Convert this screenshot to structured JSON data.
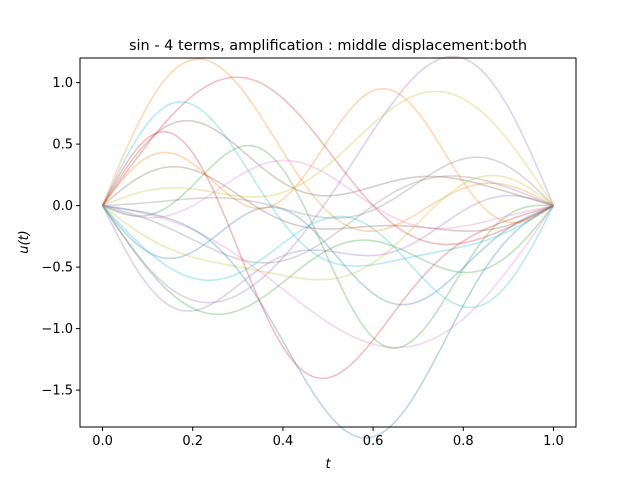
{
  "chart_data": {
    "type": "line",
    "title": "sin - 4 terms, amplification : middle displacement:both",
    "xlabel": "t",
    "ylabel": "u(t)",
    "xlim": [
      -0.05,
      1.05
    ],
    "ylim": [
      -1.8,
      1.2
    ],
    "xticks": [
      0.0,
      0.2,
      0.4,
      0.6,
      0.8,
      1.0
    ],
    "xtick_labels": [
      "0.0",
      "0.2",
      "0.4",
      "0.6",
      "0.8",
      "1.0"
    ],
    "yticks": [
      -1.5,
      -1.0,
      -0.5,
      0.0,
      0.5,
      1.0
    ],
    "ytick_labels": [
      "−1.5",
      "−1.0",
      "−0.5",
      "0.0",
      "0.5",
      "1.0"
    ],
    "grid": false,
    "legend": "none",
    "line_alpha": 0.3,
    "basis": "sum_k a_k sin(k*pi*t), k = 1..4",
    "series": [
      {
        "color": "#ff7f0e",
        "coefficients": [
          0.4,
          0.55,
          0.45,
          0.0
        ]
      },
      {
        "color": "#1f77b4",
        "coefficients": [
          -0.49,
          0.21,
          -0.16,
          -0.23
        ]
      },
      {
        "color": "#2ca02c",
        "coefficients": [
          -0.38,
          0.58,
          0.05,
          -0.36
        ]
      },
      {
        "color": "#d62728",
        "coefficients": [
          0.47,
          0.66,
          0.02,
          -0.05
        ]
      },
      {
        "color": "#9467bd",
        "coefficients": [
          0.17,
          -0.99,
          0.12,
          -0.07
        ]
      },
      {
        "color": "#8c564b",
        "coefficients": [
          0.34,
          0.19,
          0.26,
          0.1
        ]
      },
      {
        "color": "#e377c2",
        "coefficients": [
          -0.95,
          0.38,
          0.0,
          0.0
        ]
      },
      {
        "color": "#7f7f7f",
        "coefficients": [
          -0.18,
          -0.3,
          0.09,
          0.05
        ]
      },
      {
        "color": "#bcbd22",
        "coefficients": [
          0.53,
          -0.41,
          0.2,
          0.04
        ]
      },
      {
        "color": "#17becf",
        "coefficients": [
          -0.12,
          0.52,
          0.33,
          0.14
        ]
      },
      {
        "color": "#1f77b4",
        "coefficients": [
          -1.37,
          0.42,
          0.32,
          -0.15
        ]
      },
      {
        "color": "#ff7f0e",
        "coefficients": [
          0.5,
          -0.15,
          -0.03,
          0.37
        ]
      },
      {
        "color": "#2ca02c",
        "coefficients": [
          -0.67,
          -0.19,
          -0.31,
          0.06
        ]
      },
      {
        "color": "#d62728",
        "coefficients": [
          -0.82,
          0.26,
          0.58,
          0.19
        ]
      },
      {
        "color": "#9467bd",
        "coefficients": [
          -0.52,
          -0.31,
          -0.15,
          -0.19
        ]
      },
      {
        "color": "#8c564b",
        "coefficients": [
          -0.09,
          0.2,
          0.1,
          0.1
        ]
      },
      {
        "color": "#e377c2",
        "coefficients": [
          0.1,
          0.15,
          -0.15,
          -0.1
        ]
      },
      {
        "color": "#7f7f7f",
        "coefficients": [
          0.08,
          -0.12,
          0.18,
          -0.08
        ]
      },
      {
        "color": "#17becf",
        "coefficients": [
          -0.52,
          0.06,
          -0.42,
          0.1
        ]
      },
      {
        "color": "#bcbd22",
        "coefficients": [
          -0.45,
          -0.25,
          0.15,
          -0.1
        ]
      }
    ]
  }
}
